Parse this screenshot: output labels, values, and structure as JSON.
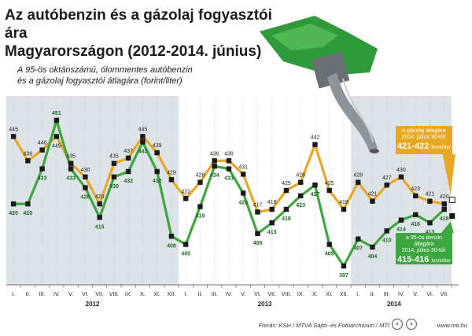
{
  "title_line1": "Az autóbenzin és a gázolaj fogyasztói ára",
  "title_line2": "Magyarországon (2012-2014. június)",
  "subtitle_line1": "A 95-ös oktánszámú, ólommentes autóbenzin",
  "subtitle_line2": "és a gázolaj fogyasztói átlagára (forint/liter)",
  "callouts": {
    "diesel_line1": "a gázolaj átlagára",
    "diesel_line2": "2014. július 30-tól:",
    "diesel_value": "421-422",
    "diesel_unit": "forint/liter",
    "petrol_line1": "a 95-ös benzin átlagára",
    "petrol_line2": "2014. július 30-tól:",
    "petrol_value": "415-416",
    "petrol_unit": "forint/liter"
  },
  "footer": {
    "source": "Forrás: KSH / MTVA Sajtó- és Fotóarchívum / MTI",
    "site": "www.mti.hu"
  },
  "colors": {
    "diesel": "#e8a824",
    "petrol": "#3ca63f",
    "band": "#dde3e6",
    "marker": "#1a1a1a"
  },
  "chart_data": {
    "type": "line",
    "x_tick_labels": [
      "I.",
      "II.",
      "III.",
      "IV.",
      "V.",
      "VI.",
      "VII.",
      "VIII.",
      "IX.",
      "X.",
      "XI.",
      "XII.",
      "I.",
      "II.",
      "III.",
      "IV.",
      "V.",
      "VI.",
      "VII.",
      "VIII.",
      "IX.",
      "X.",
      "XI.",
      "XII.",
      "I.",
      "II.",
      "III.",
      "IV.",
      "V.",
      "VI.",
      "VII."
    ],
    "year_labels": [
      "2012",
      "2013",
      "2014"
    ],
    "series": [
      {
        "color": "#e8a824",
        "values": [
          445,
          436,
          440,
          445,
          435,
          430,
          420,
          435,
          437,
          445,
          439,
          429,
          422,
          428,
          436,
          436,
          431,
          417,
          418,
          425,
          428,
          442,
          425,
          418,
          428,
          421,
          427,
          430,
          423,
          421,
          420
        ],
        "labels": [
          "445",
          "436",
          "440",
          "445",
          "435",
          "430",
          "420",
          "435",
          "437",
          "445",
          "439",
          "429",
          "422",
          "428",
          "436",
          "436",
          "431",
          "417",
          "418",
          "425",
          "428",
          "442",
          "425",
          "418",
          "428",
          "421",
          "427",
          "430",
          "423",
          "421",
          "420"
        ]
      },
      {
        "color": "#3ca63f",
        "values": [
          420,
          420,
          433,
          451,
          433,
          426,
          415,
          430,
          432,
          443,
          432,
          408,
          405,
          419,
          434,
          433,
          424,
          409,
          413,
          418,
          423,
          427,
          405,
          397,
          407,
          404,
          410,
          414,
          416,
          413,
          418
        ],
        "labels": [
          "420",
          "420",
          "433",
          "451",
          "433",
          "426",
          "415",
          "430",
          "432",
          "443",
          "432",
          "408",
          "405",
          "419",
          "434",
          "433",
          "424",
          "409",
          "413",
          "418",
          "423",
          "427",
          "405",
          "397",
          "407",
          "404",
          "410",
          "414",
          "416",
          "413",
          "418"
        ]
      }
    ],
    "end_points": {
      "diesel": 421.5,
      "petrol": 415.5
    },
    "ylim": [
      390,
      460
    ]
  }
}
